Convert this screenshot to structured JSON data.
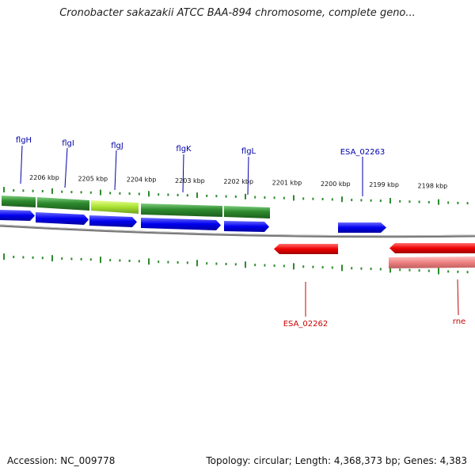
{
  "title": "Cronobacter sakazakii ATCC BAA-894 chromosome, complete geno...",
  "footer": {
    "accession": "Accession: NC_009778",
    "summary": "Topology: circular; Length: 4,368,373 bp; Genes: 4,383"
  },
  "scale_labels": [
    "2206 kbp",
    "2205 kbp",
    "2204 kbp",
    "2203 kbp",
    "2202 kbp",
    "2201 kbp",
    "2200 kbp",
    "2199 kbp",
    "2198 kbp"
  ],
  "colors": {
    "gene_green": "#2e8b2e",
    "gene_light": "#b0e040",
    "cds_blue": "#0000ee",
    "cds_red": "#ee0000",
    "cds_pink": "#ee8080",
    "tick": "#2e8b2e",
    "label_blue": "#0000aa",
    "label_red": "#cc0000",
    "backbone": "#777777"
  },
  "gene_labels": [
    {
      "name": "flgH",
      "strand": "forward"
    },
    {
      "name": "flgI",
      "strand": "forward"
    },
    {
      "name": "flgJ",
      "strand": "forward"
    },
    {
      "name": "flgK",
      "strand": "forward"
    },
    {
      "name": "flgL",
      "strand": "forward"
    },
    {
      "name": "ESA_02263",
      "strand": "forward"
    },
    {
      "name": "ESA_02262",
      "strand": "reverse"
    },
    {
      "name": "rne",
      "strand": "reverse"
    }
  ]
}
